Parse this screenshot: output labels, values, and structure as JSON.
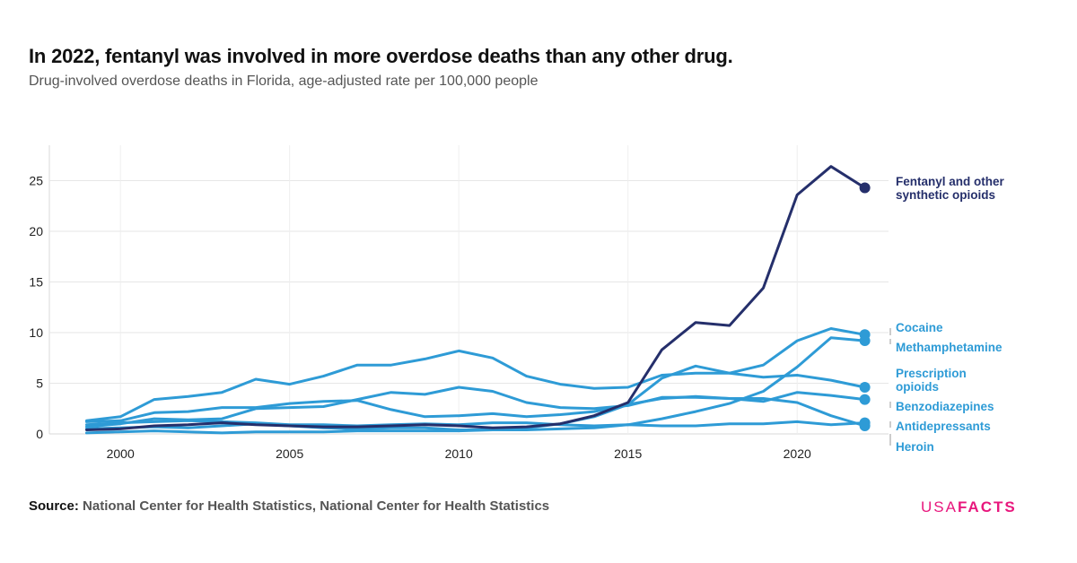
{
  "title": "In 2022, fentanyl was involved in more overdose deaths than any other drug.",
  "subtitle": "Drug-involved overdose deaths in Florida, age-adjusted rate per 100,000 people",
  "source": {
    "label": "Source:",
    "text": "National Center for Health Statistics, National Center for Health Statistics"
  },
  "logo": {
    "part1": "USA",
    "part2": "FACTS"
  },
  "colors": {
    "accent": "#2e9bd6",
    "dark": "#252f6b",
    "brand": "#e8177d"
  },
  "chart_data": {
    "type": "line",
    "title": "In 2022, fentanyl was involved in more overdose deaths than any other drug.",
    "subtitle": "Drug-involved overdose deaths in Florida, age-adjusted rate per 100,000 people",
    "xlabel": "",
    "ylabel": "",
    "x": [
      1999,
      2000,
      2001,
      2002,
      2003,
      2004,
      2005,
      2006,
      2007,
      2008,
      2009,
      2010,
      2011,
      2012,
      2013,
      2014,
      2015,
      2016,
      2017,
      2018,
      2019,
      2020,
      2021,
      2022
    ],
    "xlim": [
      1997.9,
      2022.7
    ],
    "ylim": [
      0,
      28.5
    ],
    "x_ticks": [
      2000,
      2005,
      2010,
      2015,
      2020
    ],
    "y_ticks": [
      0,
      5,
      10,
      15,
      20,
      25
    ],
    "grid": true,
    "series": [
      {
        "name": "Fentanyl and other synthetic opioids",
        "label_lines": [
          "Fentanyl and other",
          "synthetic opioids"
        ],
        "color": "#252f6b",
        "values": [
          0.4,
          0.5,
          0.8,
          0.9,
          1.1,
          0.9,
          0.8,
          0.7,
          0.7,
          0.8,
          0.9,
          0.8,
          0.6,
          0.7,
          1.0,
          1.8,
          3.1,
          8.3,
          11.0,
          10.7,
          14.4,
          23.6,
          26.4,
          24.3
        ]
      },
      {
        "name": "Cocaine",
        "label_lines": [
          "Cocaine"
        ],
        "color": "#2e9bd6",
        "values": [
          1.3,
          1.7,
          3.4,
          3.7,
          4.1,
          5.4,
          4.9,
          5.7,
          6.8,
          6.8,
          7.4,
          8.2,
          7.5,
          5.7,
          4.9,
          4.5,
          4.6,
          5.8,
          6.0,
          6.0,
          6.8,
          9.2,
          10.4,
          9.8
        ]
      },
      {
        "name": "Methamphetamine",
        "label_lines": [
          "Methamphetamine"
        ],
        "color": "#2e9bd6",
        "values": [
          0.1,
          0.2,
          0.3,
          0.2,
          0.1,
          0.2,
          0.2,
          0.2,
          0.3,
          0.3,
          0.3,
          0.3,
          0.4,
          0.4,
          0.5,
          0.6,
          0.9,
          1.5,
          2.2,
          3.0,
          4.2,
          6.6,
          9.5,
          9.2
        ]
      },
      {
        "name": "Prescription opioids",
        "label_lines": [
          "Prescription",
          "opioids"
        ],
        "color": "#2e9bd6",
        "values": [
          1.2,
          1.3,
          2.1,
          2.2,
          2.6,
          2.6,
          3.0,
          3.2,
          3.3,
          2.4,
          1.7,
          1.8,
          2.0,
          1.7,
          1.9,
          2.2,
          2.9,
          5.5,
          6.7,
          6.0,
          5.6,
          5.8,
          5.3,
          4.6
        ]
      },
      {
        "name": "Benzodiazepines",
        "label_lines": [
          "Benzodiazepines"
        ],
        "color": "#2e9bd6",
        "values": [
          0.7,
          1.0,
          1.5,
          1.4,
          1.5,
          2.5,
          2.6,
          2.7,
          3.4,
          4.1,
          3.9,
          4.6,
          4.2,
          3.1,
          2.6,
          2.5,
          2.8,
          3.6,
          3.6,
          3.5,
          3.2,
          4.1,
          3.8,
          3.4
        ]
      },
      {
        "name": "Antidepressants",
        "label_lines": [
          "Antidepressants"
        ],
        "color": "#2e9bd6",
        "values": [
          0.9,
          1.1,
          1.2,
          1.3,
          1.2,
          1.1,
          0.9,
          0.9,
          0.8,
          0.9,
          1.0,
          0.9,
          1.1,
          1.1,
          0.9,
          0.8,
          0.9,
          0.8,
          0.8,
          1.0,
          1.0,
          1.2,
          0.9,
          1.1
        ]
      },
      {
        "name": "Heroin",
        "label_lines": [
          "Heroin"
        ],
        "color": "#2e9bd6",
        "values": [
          0.5,
          0.6,
          0.7,
          0.6,
          0.8,
          1.0,
          0.8,
          0.6,
          0.5,
          0.6,
          0.6,
          0.4,
          0.4,
          0.6,
          1.0,
          1.7,
          2.9,
          3.5,
          3.7,
          3.5,
          3.5,
          3.1,
          1.8,
          0.8
        ]
      }
    ]
  }
}
